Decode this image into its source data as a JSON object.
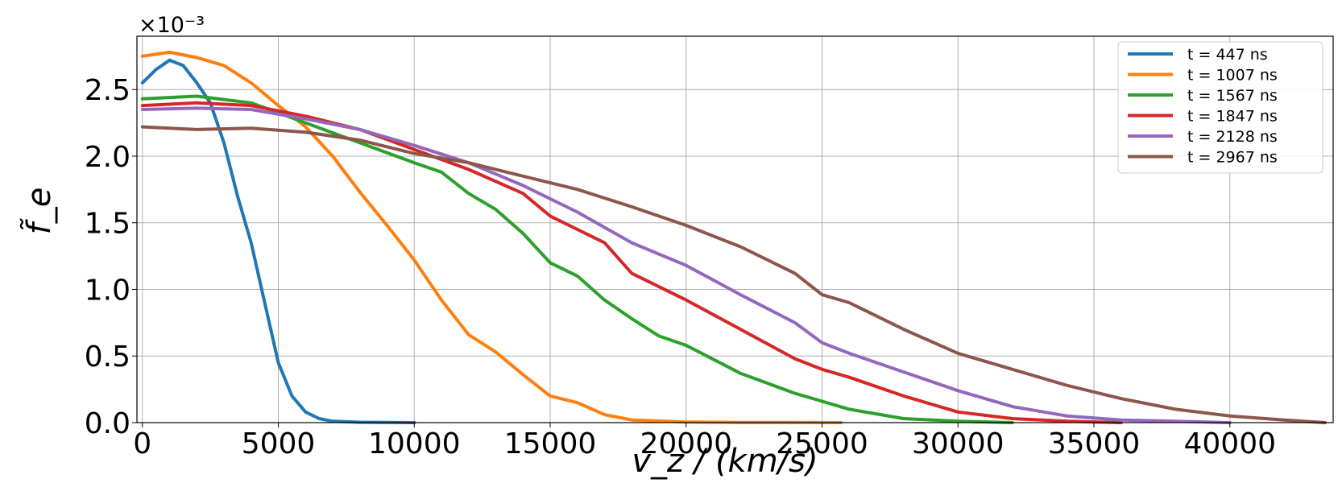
{
  "chart_data": {
    "type": "line",
    "title": "",
    "xlabel": "v_z / (km/s)",
    "ylabel": "f̃_e",
    "y_multiplier": "×10⁻³",
    "xlim": [
      -200,
      43800
    ],
    "ylim": [
      0,
      2.9
    ],
    "x_ticks": [
      "0",
      "5000",
      "10000",
      "15000",
      "20000",
      "25000",
      "30000",
      "35000",
      "40000"
    ],
    "y_ticks": [
      "0.0",
      "0.5",
      "1.0",
      "1.5",
      "2.0",
      "2.5"
    ],
    "grid": true,
    "legend_position": "top-right",
    "series": [
      {
        "name": "t = 447 ns",
        "color": "#1f77b4",
        "x": [
          0,
          500,
          1000,
          1500,
          2000,
          2500,
          3000,
          3500,
          4000,
          4500,
          5000,
          5500,
          6000,
          6500,
          7000,
          8000,
          9000,
          10000
        ],
        "y": [
          2.55,
          2.65,
          2.72,
          2.68,
          2.55,
          2.4,
          2.1,
          1.7,
          1.35,
          0.9,
          0.45,
          0.2,
          0.08,
          0.03,
          0.01,
          0.003,
          0.001,
          0.0
        ]
      },
      {
        "name": "t = 1007 ns",
        "color": "#ff7f0e",
        "x": [
          0,
          1000,
          2000,
          3000,
          4000,
          5000,
          6000,
          7000,
          8000,
          9000,
          10000,
          11000,
          12000,
          13000,
          14000,
          15000,
          16000,
          17000,
          18000,
          20000,
          22000,
          24000,
          25700
        ],
        "y": [
          2.75,
          2.78,
          2.74,
          2.68,
          2.55,
          2.38,
          2.22,
          2.0,
          1.73,
          1.48,
          1.22,
          0.92,
          0.66,
          0.53,
          0.36,
          0.2,
          0.15,
          0.06,
          0.02,
          0.005,
          0.002,
          0.001,
          0.0
        ]
      },
      {
        "name": "t = 1567 ns",
        "color": "#2ca02c",
        "x": [
          0,
          2000,
          4000,
          6000,
          8000,
          10000,
          11000,
          12000,
          13000,
          14000,
          15000,
          16000,
          17000,
          18000,
          19000,
          20000,
          22000,
          24000,
          26000,
          28000,
          30000,
          32000
        ],
        "y": [
          2.43,
          2.45,
          2.4,
          2.25,
          2.1,
          1.95,
          1.88,
          1.72,
          1.6,
          1.42,
          1.2,
          1.1,
          0.92,
          0.78,
          0.65,
          0.58,
          0.37,
          0.22,
          0.1,
          0.03,
          0.01,
          0.0
        ]
      },
      {
        "name": "t = 1847 ns",
        "color": "#d62728",
        "x": [
          0,
          2000,
          4000,
          6000,
          8000,
          10000,
          12000,
          14000,
          15000,
          16000,
          17000,
          18000,
          20000,
          22000,
          24000,
          25000,
          26000,
          28000,
          30000,
          32000,
          34000,
          36000
        ],
        "y": [
          2.38,
          2.4,
          2.38,
          2.3,
          2.2,
          2.05,
          1.9,
          1.72,
          1.55,
          1.45,
          1.35,
          1.12,
          0.92,
          0.7,
          0.48,
          0.4,
          0.34,
          0.2,
          0.08,
          0.03,
          0.01,
          0.0
        ]
      },
      {
        "name": "t = 2128 ns",
        "color": "#9467bd",
        "x": [
          0,
          2000,
          4000,
          6000,
          8000,
          10000,
          12000,
          14000,
          16000,
          18000,
          20000,
          22000,
          24000,
          25000,
          26000,
          28000,
          30000,
          32000,
          34000,
          36000,
          38000,
          40000
        ],
        "y": [
          2.35,
          2.36,
          2.35,
          2.28,
          2.2,
          2.08,
          1.95,
          1.78,
          1.58,
          1.35,
          1.18,
          0.96,
          0.75,
          0.6,
          0.52,
          0.38,
          0.24,
          0.12,
          0.05,
          0.02,
          0.01,
          0.0
        ]
      },
      {
        "name": "t = 2967 ns",
        "color": "#8c564b",
        "x": [
          0,
          2000,
          4000,
          6000,
          8000,
          10000,
          12000,
          14000,
          16000,
          18000,
          20000,
          22000,
          24000,
          25000,
          26000,
          28000,
          30000,
          32000,
          34000,
          36000,
          38000,
          40000,
          42000,
          43500
        ],
        "y": [
          2.22,
          2.2,
          2.21,
          2.18,
          2.12,
          2.02,
          1.95,
          1.85,
          1.75,
          1.62,
          1.48,
          1.32,
          1.12,
          0.96,
          0.9,
          0.7,
          0.52,
          0.4,
          0.28,
          0.18,
          0.1,
          0.05,
          0.02,
          0.0
        ]
      }
    ]
  }
}
